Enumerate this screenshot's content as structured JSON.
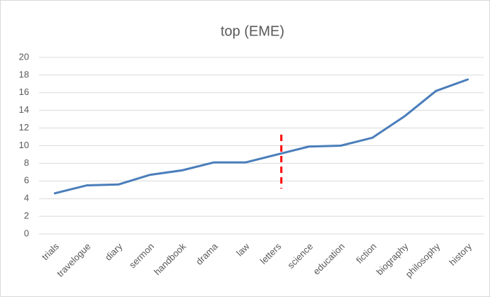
{
  "chart_data": {
    "type": "line",
    "title": "top (EME)",
    "categories": [
      "trials",
      "travelogue",
      "diary",
      "sermon",
      "handbook",
      "drama",
      "law",
      "letters",
      "science",
      "education",
      "fiction",
      "biography",
      "philosophy",
      "history"
    ],
    "values": [
      4.6,
      5.5,
      5.6,
      6.7,
      7.2,
      8.1,
      8.1,
      9.0,
      9.9,
      10.0,
      10.9,
      13.3,
      16.2,
      17.5
    ],
    "color": "#4a7ebb",
    "ylim": [
      0,
      20
    ],
    "yticks": [
      0,
      2,
      4,
      6,
      8,
      10,
      12,
      14,
      16,
      18,
      20
    ],
    "grid": true
  }
}
